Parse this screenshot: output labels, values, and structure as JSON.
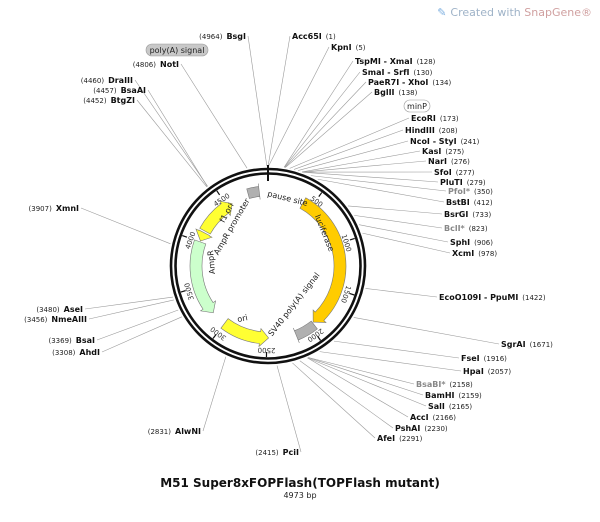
{
  "watermark": {
    "prefix": "Created with ",
    "brand": "SnapGene®"
  },
  "plasmid": {
    "name": "M51 Super8xFOPFlash(TOPFlash mutant)",
    "length_label": "4973 bp",
    "total_bp": 4973
  },
  "ruler_ticks": [
    {
      "bp": 500,
      "label": "500"
    },
    {
      "bp": 1000,
      "label": "1000"
    },
    {
      "bp": 1500,
      "label": "1500"
    },
    {
      "bp": 2000,
      "label": "2000"
    },
    {
      "bp": 2500,
      "label": "2500"
    },
    {
      "bp": 3000,
      "label": "3000"
    },
    {
      "bp": 3500,
      "label": "3500"
    },
    {
      "bp": 4000,
      "label": "4000"
    },
    {
      "bp": 4500,
      "label": "4500"
    }
  ],
  "features": [
    {
      "name": "luciferase",
      "start": 400,
      "end": 1950,
      "color": "#ffcc00",
      "direction": 1
    },
    {
      "name": "SV40 poly(A) signal",
      "start": 1960,
      "end": 2180,
      "color": "#b0b0b0",
      "direction": 1,
      "shape": "box"
    },
    {
      "name": "ori",
      "start": 2480,
      "end": 3000,
      "color": "#ffff33",
      "direction": -1
    },
    {
      "name": "AmpR",
      "start": 3170,
      "end": 4000,
      "color": "#ccffcc",
      "direction": -1
    },
    {
      "name": "AmpR promoter",
      "start": 4010,
      "end": 4110,
      "color": "#ffff33",
      "direction": -1
    },
    {
      "name": "f1 ori",
      "start": 4130,
      "end": 4560,
      "color": "#ffff33",
      "direction": 1
    },
    {
      "name": "pause site",
      "start": 4760,
      "end": 4880,
      "color": "#b0b0b0",
      "direction": 1,
      "shape": "box"
    },
    {
      "name": "poly(A) signal",
      "start": 4700,
      "end": 4750,
      "color": "#b0b0b0",
      "direction": 1,
      "shape": "box"
    }
  ],
  "feature_labels": {
    "luciferase": "luciferase",
    "sv40": "SV40 poly(A) signal",
    "ori": "ori",
    "ampr": "AmpR",
    "amp_promoter": "AmpR promoter",
    "f1_ori": "f1 ori",
    "pause": "pause site",
    "polya_tag": "poly(A) signal",
    "minp_tag": "minP"
  },
  "sites_left": [
    {
      "name": "BsgI",
      "pos": "(4964)",
      "bp": 4964
    },
    {
      "name": "NotI",
      "pos": "(4806)",
      "bp": 4806
    },
    {
      "name": "DraIII",
      "pos": "(4460)",
      "bp": 4460
    },
    {
      "name": "BsaAI",
      "pos": "(4457)",
      "bp": 4457
    },
    {
      "name": "BtgZI",
      "pos": "(4452)",
      "bp": 4452
    },
    {
      "name": "XmnI",
      "pos": "(3907)",
      "bp": 3907
    },
    {
      "name": "AseI",
      "pos": "(3480)",
      "bp": 3480
    },
    {
      "name": "NmeAIII",
      "pos": "(3456)",
      "bp": 3456
    },
    {
      "name": "BsaI",
      "pos": "(3369)",
      "bp": 3369
    },
    {
      "name": "AhdI",
      "pos": "(3308)",
      "bp": 3308
    },
    {
      "name": "AlwNI",
      "pos": "(2831)",
      "bp": 2831
    },
    {
      "name": "PciI",
      "pos": "(2415)",
      "bp": 2415
    }
  ],
  "sites_right": [
    {
      "name": "Acc65I",
      "pos": "(1)",
      "bp": 1
    },
    {
      "name": "KpnI",
      "pos": "(5)",
      "bp": 5
    },
    {
      "name": "TspMI - XmaI",
      "pos": "(128)",
      "bp": 128
    },
    {
      "name": "SmaI - SrfI",
      "pos": "(130)",
      "bp": 130
    },
    {
      "name": "PaeR7I - XhoI",
      "pos": "(134)",
      "bp": 134
    },
    {
      "name": "BglII",
      "pos": "(138)",
      "bp": 138
    },
    {
      "name": "EcoRI",
      "pos": "(173)",
      "bp": 173
    },
    {
      "name": "HindIII",
      "pos": "(208)",
      "bp": 208
    },
    {
      "name": "NcoI - StyI",
      "pos": "(241)",
      "bp": 241
    },
    {
      "name": "KasI",
      "pos": "(275)",
      "bp": 275
    },
    {
      "name": "NarI",
      "pos": "(276)",
      "bp": 276
    },
    {
      "name": "SfoI",
      "pos": "(277)",
      "bp": 277
    },
    {
      "name": "PluTI",
      "pos": "(279)",
      "bp": 279
    },
    {
      "name": "PfoI*",
      "pos": "(350)",
      "bp": 350,
      "muted": true
    },
    {
      "name": "BstBI",
      "pos": "(412)",
      "bp": 412
    },
    {
      "name": "BsrGI",
      "pos": "(733)",
      "bp": 733
    },
    {
      "name": "BclI*",
      "pos": "(823)",
      "bp": 823,
      "muted": true
    },
    {
      "name": "SphI",
      "pos": "(906)",
      "bp": 906
    },
    {
      "name": "XcmI",
      "pos": "(978)",
      "bp": 978
    },
    {
      "name": "EcoO109I - PpuMI",
      "pos": "(1422)",
      "bp": 1422
    },
    {
      "name": "SgrAI",
      "pos": "(1671)",
      "bp": 1671
    },
    {
      "name": "FseI",
      "pos": "(1916)",
      "bp": 1916
    },
    {
      "name": "HpaI",
      "pos": "(2057)",
      "bp": 2057
    },
    {
      "name": "BsaBI*",
      "pos": "(2158)",
      "bp": 2158,
      "muted": true
    },
    {
      "name": "BamHI",
      "pos": "(2159)",
      "bp": 2159
    },
    {
      "name": "SalI",
      "pos": "(2165)",
      "bp": 2165
    },
    {
      "name": "AccI",
      "pos": "(2166)",
      "bp": 2166
    },
    {
      "name": "PshAI",
      "pos": "(2230)",
      "bp": 2230
    },
    {
      "name": "AfeI",
      "pos": "(2291)",
      "bp": 2291
    }
  ]
}
